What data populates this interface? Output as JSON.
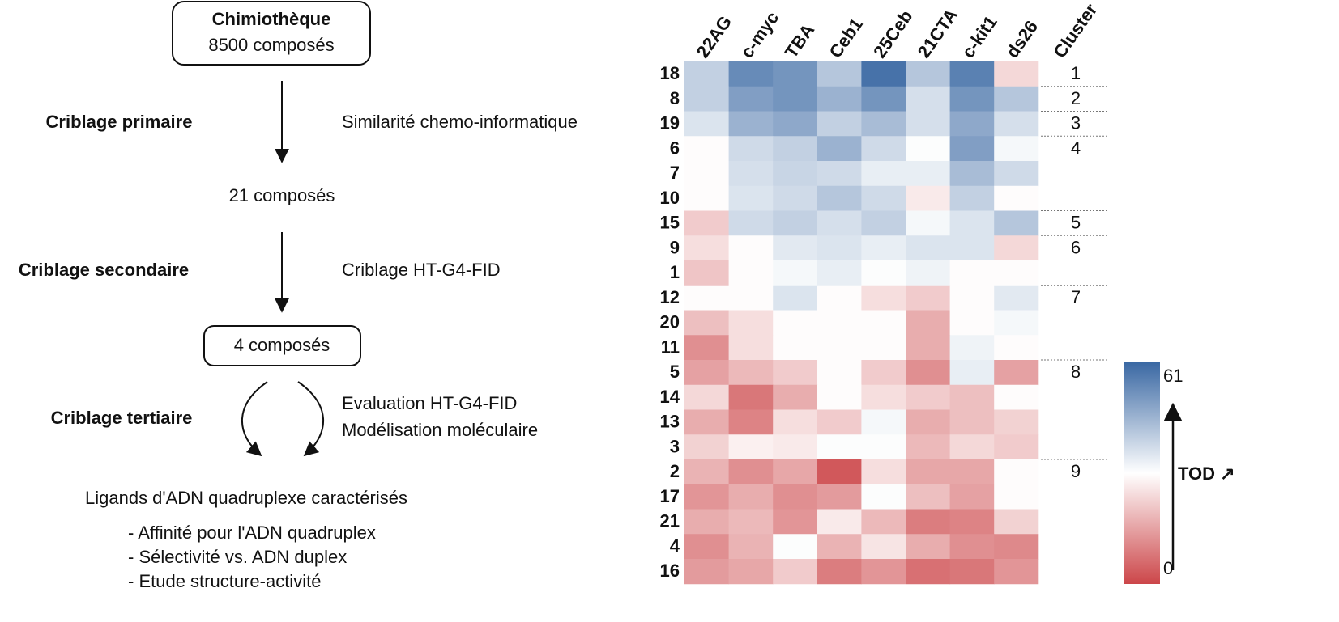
{
  "flowchart": {
    "start": {
      "title": "Chimiothèque",
      "subtitle": "8500 composés"
    },
    "primary": {
      "label": "Criblage primaire",
      "method": "Similarité chemo-informatique",
      "result": "21 composés"
    },
    "secondary": {
      "label": "Criblage secondaire",
      "method": "Criblage HT-G4-FID",
      "result": "4 composés"
    },
    "tertiary": {
      "label": "Criblage tertiaire",
      "methods": [
        "Evaluation HT-G4-FID",
        "Modélisation moléculaire"
      ]
    },
    "outcome": {
      "title": "Ligands d'ADN quadruplexe caractérisés",
      "items": [
        "- Affinité pour l'ADN quadruplex",
        "- Sélectivité vs. ADN duplex",
        "- Etude structure-activité"
      ]
    }
  },
  "chart_data": {
    "type": "heatmap",
    "x": [
      "22AG",
      "c-myc",
      "TBA",
      "Ceb1",
      "25Ceb",
      "21CTA",
      "c-kit1",
      "ds26"
    ],
    "categories": [
      "18",
      "8",
      "19",
      "6",
      "7",
      "10",
      "15",
      "9",
      "1",
      "12",
      "20",
      "11",
      "5",
      "14",
      "13",
      "3",
      "2",
      "17",
      "21",
      "4",
      "16"
    ],
    "values": [
      [
        40,
        54,
        52,
        42,
        59,
        42,
        56,
        24
      ],
      [
        40,
        50,
        52,
        46,
        52,
        37,
        52,
        42
      ],
      [
        36,
        46,
        48,
        40,
        44,
        37,
        48,
        37
      ],
      [
        30,
        38,
        40,
        46,
        38,
        31,
        50,
        32
      ],
      [
        30,
        37,
        39,
        38,
        34,
        34,
        44,
        38
      ],
      [
        30,
        36,
        38,
        42,
        38,
        27,
        40,
        30
      ],
      [
        22,
        38,
        40,
        37,
        40,
        32,
        36,
        42
      ],
      [
        25,
        30,
        35,
        36,
        34,
        36,
        36,
        24
      ],
      [
        21,
        30,
        32,
        34,
        31,
        33,
        30,
        30
      ],
      [
        30,
        30,
        36,
        30,
        25,
        22,
        30,
        35
      ],
      [
        20,
        25,
        30,
        30,
        30,
        17,
        30,
        32
      ],
      [
        12,
        25,
        30,
        30,
        30,
        17,
        33,
        30
      ],
      [
        15,
        19,
        22,
        30,
        22,
        12,
        34,
        15
      ],
      [
        24,
        8,
        17,
        30,
        25,
        22,
        20,
        30
      ],
      [
        17,
        10,
        25,
        22,
        32,
        17,
        20,
        23
      ],
      [
        23,
        28,
        27,
        31,
        31,
        19,
        24,
        22
      ],
      [
        18,
        12,
        16,
        3,
        25,
        16,
        16,
        30
      ],
      [
        13,
        17,
        12,
        14,
        31,
        20,
        15,
        30
      ],
      [
        17,
        19,
        13,
        27,
        19,
        9,
        10,
        23
      ],
      [
        12,
        18,
        31,
        18,
        26,
        17,
        12,
        11
      ],
      [
        14,
        16,
        22,
        9,
        13,
        7,
        8,
        13
      ]
    ],
    "cluster_label": "Cluster",
    "clusters": [
      "1",
      "2",
      "3",
      "4",
      null,
      null,
      "5",
      "6",
      null,
      "7",
      null,
      null,
      "8",
      null,
      null,
      null,
      "9",
      null,
      null,
      null,
      null
    ],
    "zlim": [
      0,
      61
    ],
    "zticks": [
      0,
      61
    ],
    "colorscale": [
      "#cc4649",
      "#ffffff",
      "#3a68a3"
    ],
    "colorbar_label": "TOD ↗"
  }
}
